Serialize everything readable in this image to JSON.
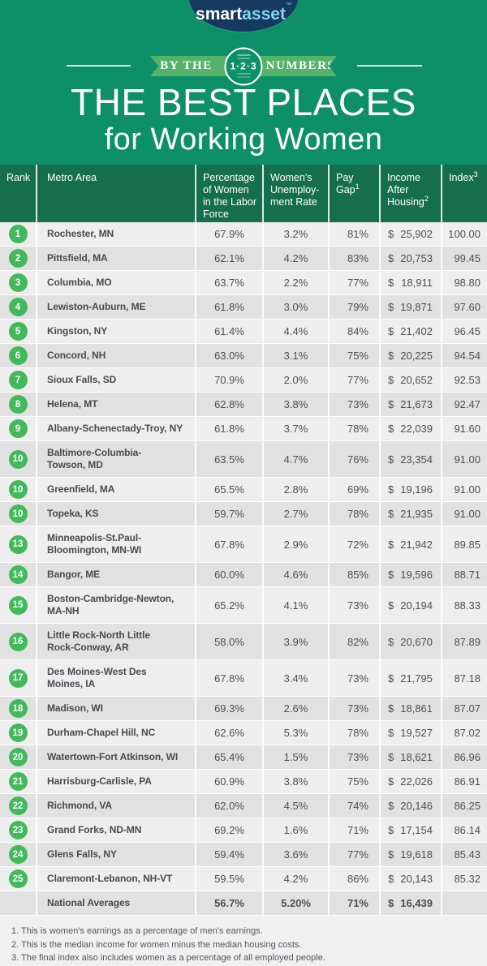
{
  "colors": {
    "bg-green": "#0d8f67",
    "header-green": "#156f4f",
    "ribbon-green": "#55b269",
    "rank-green": "#41b95c",
    "logo-navy": "#16395f",
    "logo-blue": "#87d3f2",
    "row-light": "#efeeee",
    "row-dark": "#e2e1e1",
    "text-dark": "#4e4f51",
    "foot-bg": "#f1f0f0"
  },
  "logo": {
    "smart": "smart",
    "asset": "asset",
    "tm": "™"
  },
  "banner": {
    "left_text": "BY THE",
    "right_text": "NUMBERS",
    "badge_text": "1·2·3"
  },
  "title": {
    "line1": "THE BEST PLACES",
    "line2": "for Working Women"
  },
  "table": {
    "currency": "$",
    "headers": {
      "rank": {
        "label": "Rank"
      },
      "metro": {
        "label": "Metro Area"
      },
      "labor": {
        "lines": [
          "Percentage",
          "of Women",
          "in the Labor",
          "Force"
        ]
      },
      "unemp": {
        "lines": [
          "Women's",
          "Unemploy-",
          "ment Rate"
        ]
      },
      "gap": {
        "lines": [
          "Pay",
          "Gap"
        ],
        "sup": "1"
      },
      "income": {
        "lines": [
          "Income",
          "After",
          "Housing"
        ],
        "sup": "2"
      },
      "index": {
        "lines": [
          "Index"
        ],
        "sup": "3"
      }
    }
  },
  "chart_data": {
    "type": "table",
    "title": "The Best Places for Working Women",
    "columns": [
      "Rank",
      "Metro Area",
      "Percentage of Women in the Labor Force",
      "Women's Unemployment Rate",
      "Pay Gap",
      "Income After Housing",
      "Index"
    ],
    "rows": [
      {
        "rank": "1",
        "metro": [
          "Rochester, MN"
        ],
        "labor": "67.9%",
        "unemp": "3.2%",
        "gap": "81%",
        "income": "25,902",
        "index": "100.00"
      },
      {
        "rank": "2",
        "metro": [
          "Pittsfield, MA"
        ],
        "labor": "62.1%",
        "unemp": "4.2%",
        "gap": "83%",
        "income": "20,753",
        "index": "99.45"
      },
      {
        "rank": "3",
        "metro": [
          "Columbia, MO"
        ],
        "labor": "63.7%",
        "unemp": "2.2%",
        "gap": "77%",
        "income": "18,911",
        "index": "98.80"
      },
      {
        "rank": "4",
        "metro": [
          "Lewiston-Auburn, ME"
        ],
        "labor": "61.8%",
        "unemp": "3.0%",
        "gap": "79%",
        "income": "19,871",
        "index": "97.60"
      },
      {
        "rank": "5",
        "metro": [
          "Kingston, NY"
        ],
        "labor": "61.4%",
        "unemp": "4.4%",
        "gap": "84%",
        "income": "21,402",
        "index": "96.45"
      },
      {
        "rank": "6",
        "metro": [
          "Concord, NH"
        ],
        "labor": "63.0%",
        "unemp": "3.1%",
        "gap": "75%",
        "income": "20,225",
        "index": "94.54"
      },
      {
        "rank": "7",
        "metro": [
          "Sioux Falls, SD"
        ],
        "labor": "70.9%",
        "unemp": "2.0%",
        "gap": "77%",
        "income": "20,652",
        "index": "92.53"
      },
      {
        "rank": "8",
        "metro": [
          "Helena, MT"
        ],
        "labor": "62.8%",
        "unemp": "3.8%",
        "gap": "73%",
        "income": "21,673",
        "index": "92.47"
      },
      {
        "rank": "9",
        "metro": [
          "Albany-Schenectady-Troy, NY"
        ],
        "labor": "61.8%",
        "unemp": "3.7%",
        "gap": "78%",
        "income": "22,039",
        "index": "91.60"
      },
      {
        "rank": "10",
        "metro": [
          "Baltimore-Columbia-",
          "Towson, MD"
        ],
        "labor": "63.5%",
        "unemp": "4.7%",
        "gap": "76%",
        "income": "23,354",
        "index": "91.00"
      },
      {
        "rank": "10",
        "metro": [
          "Greenfield, MA"
        ],
        "labor": "65.5%",
        "unemp": "2.8%",
        "gap": "69%",
        "income": "19,196",
        "index": "91.00"
      },
      {
        "rank": "10",
        "metro": [
          "Topeka, KS"
        ],
        "labor": "59.7%",
        "unemp": "2.7%",
        "gap": "78%",
        "income": "21,935",
        "index": "91.00"
      },
      {
        "rank": "13",
        "metro": [
          "Minneapolis-St.Paul-",
          "Bloomington, MN-WI"
        ],
        "labor": "67.8%",
        "unemp": "2.9%",
        "gap": "72%",
        "income": "21,942",
        "index": "89.85"
      },
      {
        "rank": "14",
        "metro": [
          "Bangor, ME"
        ],
        "labor": "60.0%",
        "unemp": "4.6%",
        "gap": "85%",
        "income": "19,596",
        "index": "88.71"
      },
      {
        "rank": "15",
        "metro": [
          "Boston-Cambridge-Newton,",
          "MA-NH"
        ],
        "labor": "65.2%",
        "unemp": "4.1%",
        "gap": "73%",
        "income": "20,194",
        "index": "88.33"
      },
      {
        "rank": "16",
        "metro": [
          "Little Rock-North Little",
          "Rock-Conway, AR"
        ],
        "labor": "58.0%",
        "unemp": "3.9%",
        "gap": "82%",
        "income": "20,670",
        "index": "87.89"
      },
      {
        "rank": "17",
        "metro": [
          "Des Moines-West Des",
          "Moines, IA"
        ],
        "labor": "67.8%",
        "unemp": "3.4%",
        "gap": "73%",
        "income": "21,795",
        "index": "87.18"
      },
      {
        "rank": "18",
        "metro": [
          "Madison, WI"
        ],
        "labor": "69.3%",
        "unemp": "2.6%",
        "gap": "73%",
        "income": "18,861",
        "index": "87.07"
      },
      {
        "rank": "19",
        "metro": [
          "Durham-Chapel Hill, NC"
        ],
        "labor": "62.6%",
        "unemp": "5.3%",
        "gap": "78%",
        "income": "19,527",
        "index": "87.02"
      },
      {
        "rank": "20",
        "metro": [
          "Watertown-Fort Atkinson, WI"
        ],
        "labor": "65.4%",
        "unemp": "1.5%",
        "gap": "73%",
        "income": "18,621",
        "index": "86.96"
      },
      {
        "rank": "21",
        "metro": [
          "Harrisburg-Carlisle, PA"
        ],
        "labor": "60.9%",
        "unemp": "3.8%",
        "gap": "75%",
        "income": "22,026",
        "index": "86.91"
      },
      {
        "rank": "22",
        "metro": [
          "Richmond, VA"
        ],
        "labor": "62.0%",
        "unemp": "4.5%",
        "gap": "74%",
        "income": "20,146",
        "index": "86.25"
      },
      {
        "rank": "23",
        "metro": [
          "Grand Forks, ND-MN"
        ],
        "labor": "69.2%",
        "unemp": "1.6%",
        "gap": "71%",
        "income": "17,154",
        "index": "86.14"
      },
      {
        "rank": "24",
        "metro": [
          "Glens Falls, NY"
        ],
        "labor": "59.4%",
        "unemp": "3.6%",
        "gap": "77%",
        "income": "19,618",
        "index": "85.43"
      },
      {
        "rank": "25",
        "metro": [
          "Claremont-Lebanon, NH-VT"
        ],
        "labor": "59.5%",
        "unemp": "4.2%",
        "gap": "86%",
        "income": "20,143",
        "index": "85.32"
      },
      {
        "rank": "",
        "metro": [
          "National Averages"
        ],
        "labor": "56.7%",
        "unemp": "5.20%",
        "gap": "71%",
        "income": "16,439",
        "index": "",
        "summary": true
      }
    ]
  },
  "footnotes": [
    "1. This is women's earnings as a percentage of men's earnings.",
    "2. This is the median income for women minus the median housing costs.",
    "3. The final index also includes women as a percentage of all employed people."
  ]
}
